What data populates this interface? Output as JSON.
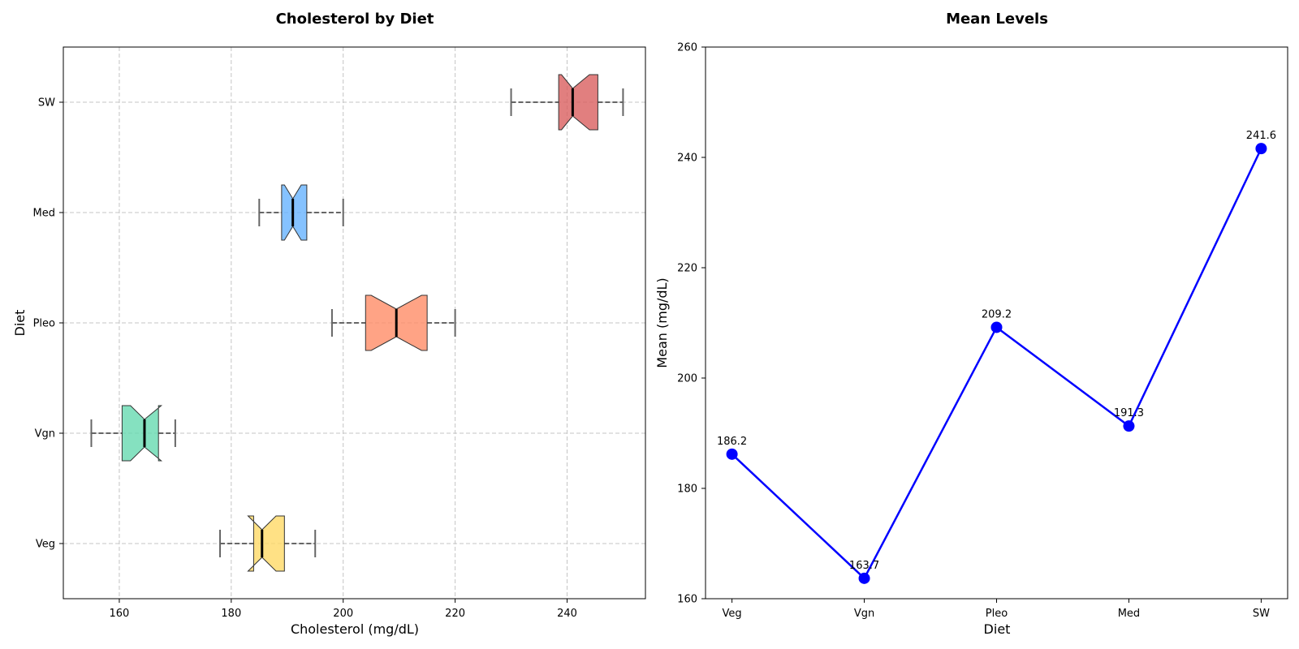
{
  "chart_data": [
    {
      "type": "boxplot",
      "orientation": "horizontal",
      "notched": true,
      "title": "Cholesterol by Diet",
      "xlabel": "Cholesterol (mg/dL)",
      "ylabel": "Diet",
      "xlim": [
        150,
        254
      ],
      "xticks": [
        160,
        180,
        200,
        220,
        240
      ],
      "grid": true,
      "categories": [
        "Veg",
        "Vgn",
        "Pleo",
        "Med",
        "SW"
      ],
      "boxes": [
        {
          "name": "Veg",
          "whisker_low": 178,
          "q1": 184,
          "median": 185.5,
          "q3": 189.5,
          "whisker_high": 195,
          "notch_low": 183,
          "notch_high": 188,
          "color": "#ffd966"
        },
        {
          "name": "Vgn",
          "whisker_low": 155,
          "q1": 160.5,
          "median": 164.5,
          "q3": 167,
          "whisker_high": 170,
          "notch_low": 162,
          "notch_high": 167.5,
          "color": "#66d9b0"
        },
        {
          "name": "Pleo",
          "whisker_low": 198,
          "q1": 204,
          "median": 209.5,
          "q3": 215,
          "whisker_high": 220,
          "notch_low": 205,
          "notch_high": 214,
          "color": "#ff8c66"
        },
        {
          "name": "Med",
          "whisker_low": 185,
          "q1": 189,
          "median": 191,
          "q3": 193.5,
          "whisker_high": 200,
          "notch_low": 189.5,
          "notch_high": 192.5,
          "color": "#66b3ff"
        },
        {
          "name": "SW",
          "whisker_low": 230,
          "q1": 238.5,
          "median": 241,
          "q3": 245.5,
          "whisker_high": 250,
          "notch_low": 239,
          "notch_high": 244,
          "color": "#d95f5f"
        }
      ]
    },
    {
      "type": "line",
      "title": "Mean Levels",
      "xlabel": "Diet",
      "ylabel": "Mean (mg/dL)",
      "ylim": [
        160,
        260
      ],
      "yticks": [
        160,
        180,
        200,
        220,
        240,
        260
      ],
      "categories": [
        "Veg",
        "Vgn",
        "Pleo",
        "Med",
        "SW"
      ],
      "values": [
        186.2,
        163.7,
        209.2,
        191.3,
        241.6
      ],
      "data_labels": [
        "186.2",
        "163.7",
        "209.2",
        "191.3",
        "241.6"
      ],
      "color": "#0000ff",
      "grid": false
    }
  ]
}
